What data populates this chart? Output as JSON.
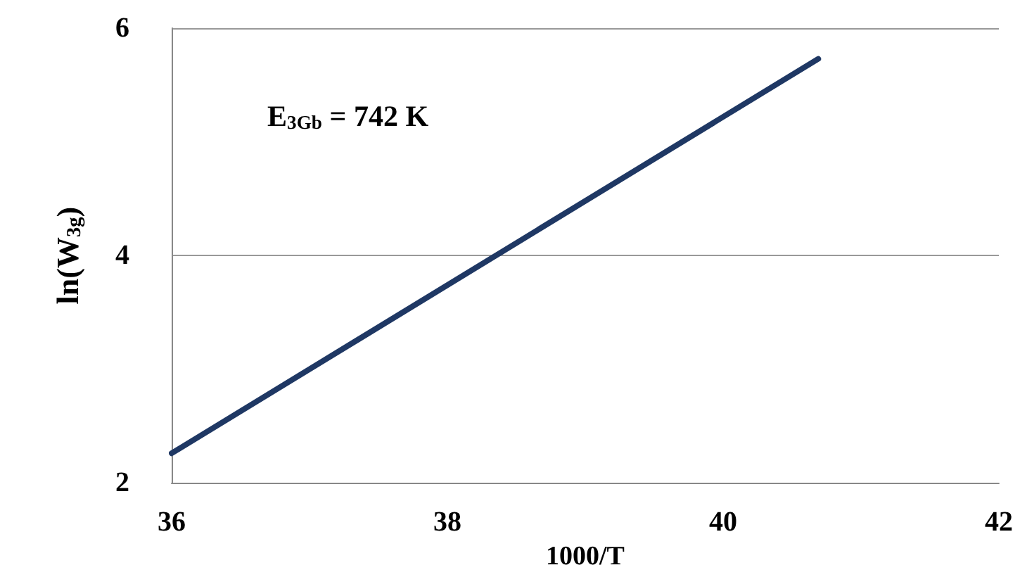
{
  "chart_data": {
    "type": "line",
    "xlabel": "1000/T",
    "ylabel": "ln(W$_{3g}$)",
    "annotations": [
      "E$_{3Gb}$ = 742 K"
    ],
    "series": [
      {
        "color": "#1f3864",
        "x": [
          36,
          40.69
        ],
        "values": [
          2.26,
          5.73
        ]
      }
    ],
    "xlim": [
      36,
      42
    ],
    "xticks": [
      36,
      38,
      40,
      42
    ],
    "ylim": [
      2,
      6
    ],
    "yticks": [
      2,
      4,
      6
    ],
    "grid": "y",
    "marker": "none",
    "line_style": "solid"
  }
}
